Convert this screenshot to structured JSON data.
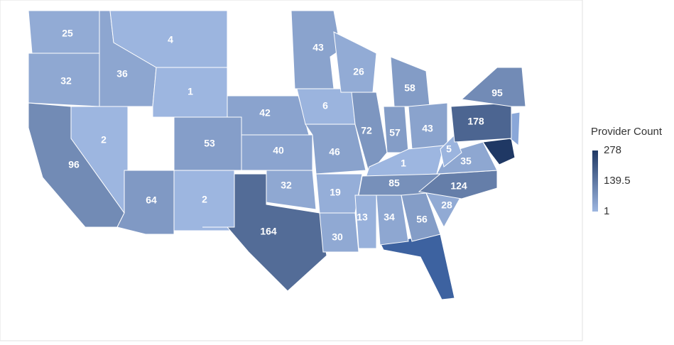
{
  "chart_data": {
    "type": "choropleth",
    "legend_title": "Provider Count",
    "legend_ticks": [
      278,
      139.5,
      1
    ],
    "color_range": [
      "#9db6e0",
      "#1f3864"
    ],
    "values": [
      25,
      32,
      96,
      36,
      4,
      1,
      2,
      64,
      53,
      2,
      42,
      40,
      32,
      164,
      43,
      6,
      46,
      19,
      30,
      26,
      72,
      58,
      57,
      43,
      1,
      85,
      13,
      34,
      56,
      28,
      124,
      35,
      5,
      178,
      95
    ]
  }
}
